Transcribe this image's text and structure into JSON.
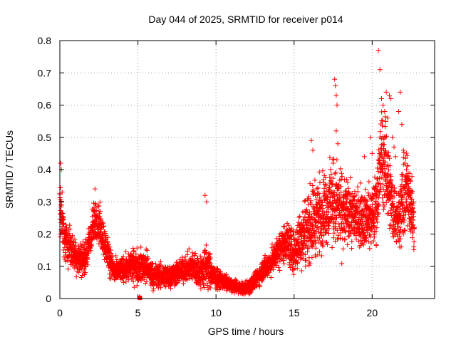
{
  "chart_data": {
    "type": "scatter",
    "title": "Day 044 of 2025, SRMTID for receiver p014",
    "xlabel": "GPS time / hours",
    "ylabel": "SRMTID / TECUs",
    "xlim": [
      0,
      24
    ],
    "ylim": [
      0,
      0.8
    ],
    "xticks": [
      0,
      5,
      10,
      15,
      20
    ],
    "yticks": [
      0,
      0.1,
      0.2,
      0.3,
      0.4,
      0.5,
      0.6,
      0.7,
      0.8
    ],
    "xtick_labels": [
      "0",
      "5",
      "10",
      "15",
      "20"
    ],
    "ytick_labels": [
      "0",
      "0.1",
      "0.2",
      "0.3",
      "0.4",
      "0.5",
      "0.6",
      "0.7",
      "0.8"
    ],
    "grid": true,
    "marker": "+",
    "series": [
      {
        "name": "SRMTID",
        "color": "#ff0000",
        "trend": {
          "x": [
            0.0,
            0.1,
            0.3,
            0.7,
            1.0,
            1.3,
            1.7,
            2.0,
            2.3,
            2.6,
            3.0,
            3.5,
            4.0,
            4.5,
            5.0,
            5.5,
            6.0,
            6.5,
            7.0,
            7.5,
            8.0,
            8.5,
            9.0,
            9.4,
            9.8,
            10.2,
            10.6,
            11.0,
            11.4,
            11.8,
            12.2,
            12.6,
            13.0,
            13.5,
            14.0,
            14.5,
            15.0,
            15.5,
            16.0,
            16.5,
            17.0,
            17.5,
            18.0,
            18.5,
            19.0,
            19.5,
            20.0,
            20.3,
            20.6,
            21.0,
            21.3,
            21.6,
            22.0,
            22.3,
            22.7
          ],
          "y": [
            0.3,
            0.25,
            0.18,
            0.16,
            0.13,
            0.12,
            0.13,
            0.2,
            0.25,
            0.22,
            0.15,
            0.08,
            0.09,
            0.1,
            0.1,
            0.1,
            0.07,
            0.07,
            0.07,
            0.08,
            0.09,
            0.1,
            0.08,
            0.1,
            0.07,
            0.06,
            0.05,
            0.04,
            0.035,
            0.03,
            0.04,
            0.06,
            0.09,
            0.11,
            0.15,
            0.18,
            0.14,
            0.2,
            0.23,
            0.26,
            0.28,
            0.3,
            0.27,
            0.26,
            0.26,
            0.25,
            0.25,
            0.3,
            0.45,
            0.38,
            0.28,
            0.25,
            0.3,
            0.35,
            0.22
          ],
          "spread": [
            0.08,
            0.06,
            0.05,
            0.05,
            0.04,
            0.04,
            0.04,
            0.05,
            0.05,
            0.05,
            0.04,
            0.03,
            0.03,
            0.04,
            0.04,
            0.04,
            0.03,
            0.03,
            0.03,
            0.03,
            0.03,
            0.04,
            0.04,
            0.06,
            0.03,
            0.02,
            0.02,
            0.015,
            0.015,
            0.015,
            0.02,
            0.02,
            0.03,
            0.03,
            0.04,
            0.05,
            0.05,
            0.08,
            0.09,
            0.09,
            0.09,
            0.1,
            0.1,
            0.07,
            0.07,
            0.07,
            0.07,
            0.09,
            0.12,
            0.1,
            0.08,
            0.07,
            0.1,
            0.09,
            0.07
          ]
        },
        "outliers": [
          {
            "x": 0.05,
            "y": 0.42
          },
          {
            "x": 0.1,
            "y": 0.4
          },
          {
            "x": 0.15,
            "y": 0.33
          },
          {
            "x": 2.25,
            "y": 0.34
          },
          {
            "x": 9.3,
            "y": 0.32
          },
          {
            "x": 9.4,
            "y": 0.3
          },
          {
            "x": 16.1,
            "y": 0.49
          },
          {
            "x": 16.2,
            "y": 0.46
          },
          {
            "x": 17.6,
            "y": 0.68
          },
          {
            "x": 17.65,
            "y": 0.66
          },
          {
            "x": 17.7,
            "y": 0.63
          },
          {
            "x": 17.75,
            "y": 0.6
          },
          {
            "x": 17.7,
            "y": 0.52
          },
          {
            "x": 17.8,
            "y": 0.48
          },
          {
            "x": 17.5,
            "y": 0.42
          },
          {
            "x": 19.5,
            "y": 0.44
          },
          {
            "x": 19.9,
            "y": 0.5
          },
          {
            "x": 20.0,
            "y": 0.45
          },
          {
            "x": 20.4,
            "y": 0.77
          },
          {
            "x": 20.5,
            "y": 0.71
          },
          {
            "x": 20.6,
            "y": 0.62
          },
          {
            "x": 20.7,
            "y": 0.6
          },
          {
            "x": 20.8,
            "y": 0.58
          },
          {
            "x": 20.9,
            "y": 0.64
          },
          {
            "x": 21.1,
            "y": 0.63
          },
          {
            "x": 21.2,
            "y": 0.62
          },
          {
            "x": 21.0,
            "y": 0.56
          },
          {
            "x": 21.3,
            "y": 0.5
          },
          {
            "x": 21.4,
            "y": 0.47
          },
          {
            "x": 21.5,
            "y": 0.44
          },
          {
            "x": 21.7,
            "y": 0.58
          },
          {
            "x": 21.8,
            "y": 0.64
          },
          {
            "x": 21.9,
            "y": 0.54
          },
          {
            "x": 22.0,
            "y": 0.46
          },
          {
            "x": 22.1,
            "y": 0.42
          },
          {
            "x": 22.2,
            "y": 0.4
          },
          {
            "x": 22.5,
            "y": 0.3
          },
          {
            "x": 22.6,
            "y": 0.28
          },
          {
            "x": 5.1,
            "y": 0.005
          },
          {
            "x": 5.15,
            "y": 0.002
          }
        ]
      }
    ]
  }
}
